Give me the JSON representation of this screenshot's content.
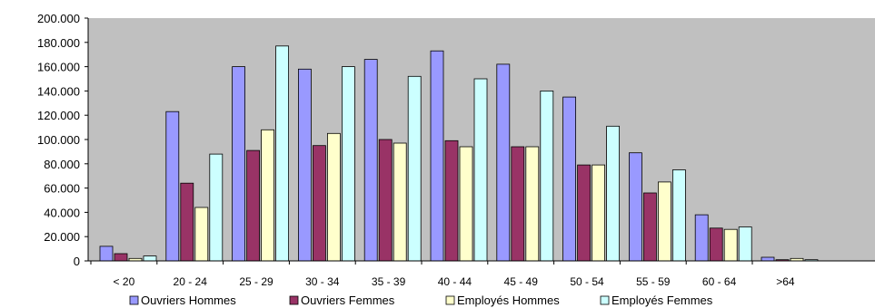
{
  "chart_data": {
    "type": "bar",
    "categories": [
      "< 20",
      "20 - 24",
      "25 - 29",
      "30 - 34",
      "35 - 39",
      "40 - 44",
      "45 - 49",
      "50 - 54",
      "55 - 59",
      "60 - 64",
      ">64"
    ],
    "series": [
      {
        "name": "Ouvriers Hommes",
        "color": "#9999FF",
        "values": [
          12000,
          123000,
          160000,
          158000,
          166000,
          173000,
          162000,
          135000,
          89000,
          38000,
          3000
        ]
      },
      {
        "name": "Ouvriers Femmes",
        "color": "#993366",
        "values": [
          6000,
          64000,
          91000,
          95000,
          100000,
          99000,
          94000,
          79000,
          56000,
          27000,
          1000
        ]
      },
      {
        "name": "Employés Hommes",
        "color": "#FFFFCC",
        "values": [
          2000,
          44000,
          108000,
          105000,
          97000,
          94000,
          94000,
          79000,
          65000,
          26000,
          2000
        ]
      },
      {
        "name": "Employés Femmes",
        "color": "#CCFFFF",
        "values": [
          4000,
          88000,
          177000,
          160000,
          152000,
          150000,
          140000,
          111000,
          75000,
          28000,
          1000
        ]
      }
    ],
    "y_ticks": [
      "0",
      "20.000",
      "40.000",
      "60.000",
      "80.000",
      "100.000",
      "120.000",
      "140.000",
      "160.000",
      "180.000",
      "200.000"
    ],
    "ylim": [
      0,
      200000
    ],
    "title": "",
    "xlabel": "",
    "ylabel": "",
    "grid": false,
    "legend": "bottom",
    "plot_background": "#C0C0C0"
  }
}
